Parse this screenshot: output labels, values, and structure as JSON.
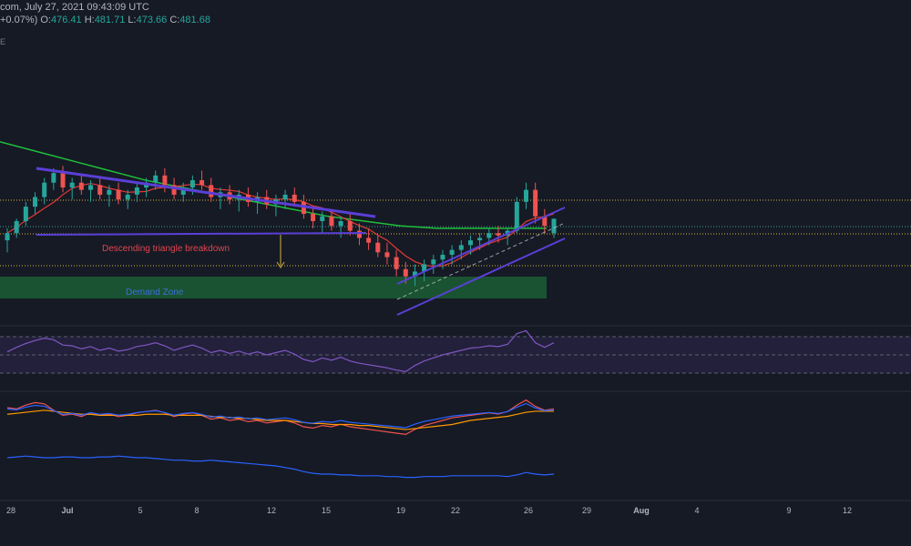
{
  "header": {
    "title_fragment": "com, July 27, 2021 09:43:09 UTC",
    "change_fragment": "+0.07%)",
    "o_label": "O:",
    "o_value": "476.41",
    "h_label": "H:",
    "h_value": "481.71",
    "l_label": "L:",
    "l_value": "473.66",
    "c_label": "C:",
    "c_value": "481.68",
    "edge_mark": "E"
  },
  "colors": {
    "background": "#161a25",
    "bull": "#26a69a",
    "bear": "#ef5350",
    "ma_long": "#1fbf3a",
    "ma_short": "#e53935",
    "trendline": "#5b3fd6",
    "demand_zone": "#1b5e34",
    "rsi": "#7e57c2",
    "rsi_band": "#2a2444",
    "macd_fast": "#ef5350",
    "macd_slow": "#ff9800",
    "macd_line": "#2962ff",
    "hline_yellow": "#d4b13a",
    "hline_teal": "#3aa39a",
    "arrow": "#d4b13a"
  },
  "chart_data": {
    "type": "candlestick",
    "x_axis_ticks": [
      "28",
      "Jul",
      "5",
      "8",
      "12",
      "15",
      "19",
      "22",
      "26",
      "29",
      "Aug",
      "4",
      "9",
      "12"
    ],
    "annotations": {
      "breakdown_label": "Descending triangle breakdown",
      "demand_label": "Demand Zone"
    },
    "ohlc": [
      [
        473,
        478,
        468,
        476
      ],
      [
        476,
        482,
        474,
        481
      ],
      [
        481,
        489,
        479,
        487
      ],
      [
        487,
        493,
        484,
        491
      ],
      [
        491,
        499,
        488,
        497
      ],
      [
        497,
        503,
        494,
        501
      ],
      [
        501,
        504,
        493,
        495
      ],
      [
        495,
        499,
        490,
        497
      ],
      [
        497,
        500,
        492,
        494
      ],
      [
        494,
        498,
        489,
        496
      ],
      [
        496,
        499,
        490,
        492
      ],
      [
        492,
        496,
        487,
        494
      ],
      [
        494,
        497,
        488,
        490
      ],
      [
        490,
        494,
        486,
        492
      ],
      [
        492,
        497,
        489,
        495
      ],
      [
        495,
        499,
        491,
        497
      ],
      [
        497,
        502,
        494,
        500
      ],
      [
        500,
        503,
        493,
        496
      ],
      [
        496,
        499,
        490,
        492
      ],
      [
        492,
        497,
        489,
        495
      ],
      [
        495,
        500,
        492,
        498
      ],
      [
        498,
        502,
        494,
        496
      ],
      [
        496,
        499,
        489,
        491
      ],
      [
        491,
        495,
        486,
        493
      ],
      [
        493,
        496,
        488,
        490
      ],
      [
        490,
        494,
        485,
        492
      ],
      [
        492,
        495,
        487,
        489
      ],
      [
        489,
        493,
        484,
        491
      ],
      [
        491,
        494,
        486,
        488
      ],
      [
        488,
        492,
        483,
        490
      ],
      [
        490,
        494,
        486,
        492
      ],
      [
        492,
        495,
        487,
        489
      ],
      [
        489,
        492,
        482,
        484
      ],
      [
        484,
        487,
        478,
        481
      ],
      [
        481,
        485,
        476,
        483
      ],
      [
        483,
        486,
        477,
        479
      ],
      [
        479,
        483,
        474,
        481
      ],
      [
        481,
        484,
        475,
        477
      ],
      [
        477,
        480,
        471,
        474
      ],
      [
        474,
        478,
        469,
        472
      ],
      [
        472,
        475,
        466,
        468
      ],
      [
        468,
        472,
        463,
        466
      ],
      [
        466,
        469,
        458,
        461
      ],
      [
        461,
        464,
        455,
        458
      ],
      [
        458,
        463,
        454,
        460
      ],
      [
        460,
        465,
        456,
        463
      ],
      [
        463,
        467,
        459,
        465
      ],
      [
        465,
        469,
        461,
        467
      ],
      [
        467,
        471,
        463,
        469
      ],
      [
        469,
        473,
        465,
        471
      ],
      [
        471,
        475,
        467,
        473
      ],
      [
        473,
        476,
        469,
        474
      ],
      [
        474,
        478,
        471,
        476
      ],
      [
        476,
        479,
        472,
        475
      ],
      [
        475,
        478,
        471,
        477
      ],
      [
        477,
        491,
        476,
        489
      ],
      [
        489,
        497,
        486,
        494
      ],
      [
        494,
        497,
        480,
        483
      ],
      [
        483,
        486,
        476,
        479
      ],
      [
        476,
        482,
        474,
        482
      ]
    ],
    "ma_long": [
      [
        0,
        514
      ],
      [
        0.1,
        510
      ],
      [
        0.2,
        506
      ],
      [
        0.3,
        502
      ],
      [
        0.4,
        498
      ],
      [
        0.5,
        495
      ],
      [
        0.6,
        492
      ],
      [
        0.7,
        489
      ],
      [
        0.8,
        486
      ],
      [
        0.9,
        483
      ],
      [
        1.0,
        481
      ],
      [
        1.1,
        479
      ],
      [
        1.2,
        478
      ],
      [
        1.3,
        478
      ],
      [
        1.4,
        478
      ],
      [
        1.5,
        478
      ]
    ],
    "rsi": [
      48,
      54,
      59,
      63,
      66,
      64,
      57,
      56,
      52,
      55,
      50,
      53,
      49,
      51,
      55,
      57,
      60,
      56,
      50,
      54,
      57,
      53,
      47,
      50,
      46,
      49,
      45,
      48,
      44,
      47,
      50,
      45,
      38,
      35,
      40,
      37,
      41,
      36,
      33,
      31,
      29,
      27,
      24,
      22,
      30,
      36,
      40,
      44,
      47,
      50,
      53,
      54,
      56,
      55,
      58,
      72,
      76,
      60,
      54,
      60
    ],
    "macd_fast": [
      10,
      9,
      12,
      14,
      13,
      8,
      4,
      5,
      3,
      6,
      4,
      5,
      3,
      4,
      6,
      7,
      8,
      6,
      3,
      5,
      6,
      4,
      1,
      2,
      0,
      1,
      -1,
      0,
      -2,
      -1,
      0,
      -2,
      -5,
      -6,
      -4,
      -5,
      -3,
      -5,
      -6,
      -7,
      -8,
      -9,
      -10,
      -11,
      -7,
      -4,
      -2,
      0,
      2,
      3,
      4,
      5,
      6,
      5,
      7,
      12,
      16,
      11,
      8,
      9
    ],
    "macd_slow": [
      6,
      7,
      8,
      9,
      10,
      9,
      8,
      7,
      6,
      6,
      5,
      5,
      5,
      5,
      5,
      6,
      6,
      6,
      5,
      5,
      5,
      5,
      4,
      3,
      3,
      2,
      2,
      1,
      0,
      0,
      0,
      -1,
      -2,
      -3,
      -3,
      -4,
      -4,
      -4,
      -5,
      -5,
      -6,
      -7,
      -8,
      -9,
      -8,
      -7,
      -6,
      -5,
      -4,
      -2,
      0,
      1,
      2,
      3,
      4,
      6,
      8,
      9,
      9,
      9
    ],
    "adx": [
      30,
      31,
      32,
      31,
      30,
      30,
      31,
      31,
      30,
      30,
      31,
      31,
      32,
      31,
      30,
      30,
      29,
      28,
      27,
      27,
      26,
      26,
      27,
      26,
      25,
      24,
      23,
      22,
      21,
      20,
      18,
      16,
      13,
      11,
      10,
      10,
      9,
      9,
      8,
      8,
      8,
      7,
      7,
      6,
      6,
      7,
      7,
      7,
      8,
      8,
      8,
      8,
      8,
      8,
      7,
      9,
      12,
      10,
      9,
      10
    ]
  }
}
